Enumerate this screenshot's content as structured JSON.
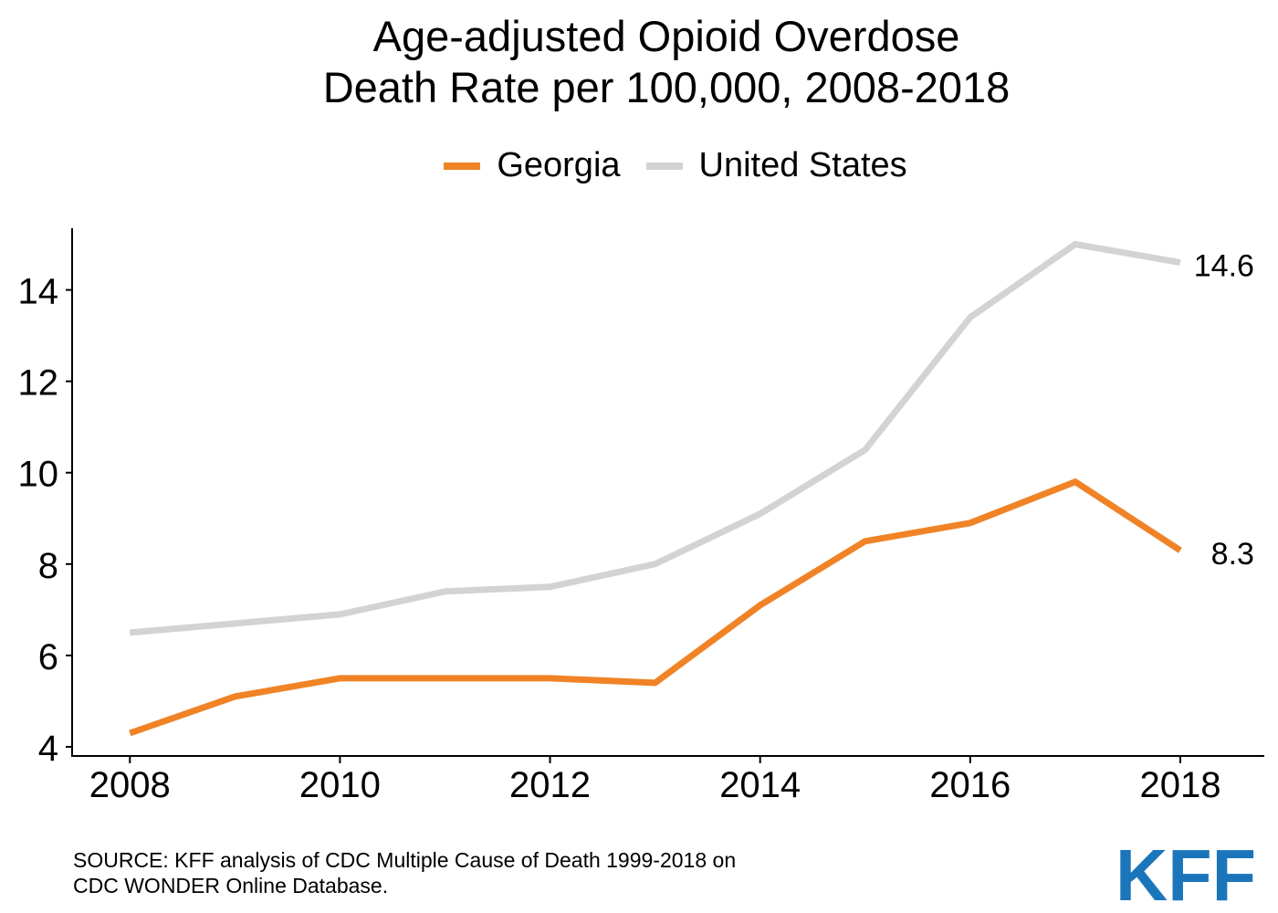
{
  "chart_data": {
    "type": "line",
    "title": "Age-adjusted Opioid Overdose",
    "subtitle": "Death Rate per 100,000, 2008-2018",
    "x": [
      2008,
      2009,
      2010,
      2011,
      2012,
      2013,
      2014,
      2015,
      2016,
      2017,
      2018
    ],
    "series": [
      {
        "name": "Georgia",
        "color": "#F08326",
        "values": [
          4.3,
          5.1,
          5.5,
          5.5,
          5.5,
          5.4,
          7.1,
          8.5,
          8.9,
          9.8,
          8.3
        ],
        "end_label": "8.3"
      },
      {
        "name": "United States",
        "color": "#D3D3D3",
        "values": [
          6.5,
          6.7,
          6.9,
          7.4,
          7.5,
          8.0,
          9.1,
          10.5,
          13.4,
          15.0,
          14.6
        ],
        "end_label": "14.6"
      }
    ],
    "x_ticks": [
      "2008",
      "2010",
      "2012",
      "2014",
      "2016",
      "2018"
    ],
    "y_ticks": [
      "4",
      "6",
      "8",
      "10",
      "12",
      "14"
    ],
    "xlim": [
      2007.45,
      2018.8
    ],
    "ylim": [
      3.8,
      15.35
    ],
    "grid": false,
    "legend": "top-center"
  },
  "source": {
    "line1": "SOURCE: KFF analysis of CDC Multiple Cause of Death 1999-2018 on",
    "line2": "CDC WONDER Online Database."
  },
  "logo": {
    "text": "KFF",
    "color": "#1B75BB"
  }
}
